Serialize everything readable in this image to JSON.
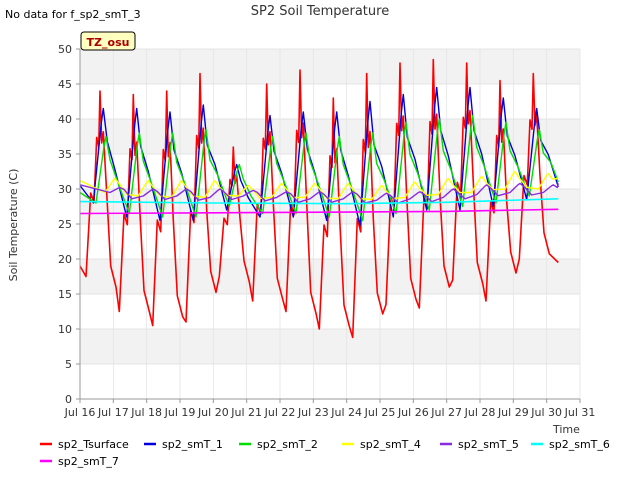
{
  "chart_data": {
    "type": "line",
    "title": "SP2 Soil Temperature",
    "no_data_note": "No data for f_sp2_smT_3",
    "site_badge": "TZ_osu",
    "xlabel": "Time",
    "ylabel": "Soil Temperature (C)",
    "xlim": [
      16,
      31
    ],
    "ylim": [
      0,
      50
    ],
    "x_ticks": [
      16,
      17,
      18,
      19,
      20,
      21,
      22,
      23,
      24,
      25,
      26,
      27,
      28,
      29,
      30,
      31
    ],
    "x_tick_labels": [
      "Jul 16",
      "Jul 17",
      "Jul 18",
      "Jul 19",
      "Jul 20",
      "Jul 21",
      "Jul 22",
      "Jul 23",
      "Jul 24",
      "Jul 25",
      "Jul 26",
      "Jul 27",
      "Jul 28",
      "Jul 29",
      "Jul 30",
      "Jul 31"
    ],
    "y_ticks": [
      0,
      5,
      10,
      15,
      20,
      25,
      30,
      35,
      40,
      45,
      50
    ],
    "y_tick_labels": [
      "0",
      "5",
      "10",
      "15",
      "20",
      "25",
      "30",
      "35",
      "40",
      "45",
      "50"
    ],
    "daily_x": [
      16.6,
      17.6,
      18.6,
      19.6,
      20.6,
      21.6,
      22.6,
      23.6,
      24.6,
      25.6,
      26.6,
      27.6,
      28.6,
      29.6
    ],
    "x_start": 16.0,
    "x_end": 30.35,
    "series": [
      {
        "name": "sp2_Tsurface",
        "color": "#ff0000",
        "width": 1.6,
        "kind": "surface",
        "start": 19,
        "end": 19.5,
        "peaks": [
          44.0,
          43.5,
          44.0,
          46.5,
          36.0,
          45.0,
          47.0,
          43.0,
          46.5,
          48.0,
          48.5,
          48.0,
          45.5,
          46.5
        ],
        "troughs": [
          17.5,
          12.5,
          10.5,
          11.0,
          17.5,
          14.0,
          12.5,
          10.0,
          8.8,
          13.5,
          13.0,
          17.0,
          14.0,
          20.0
        ]
      },
      {
        "name": "sp2_smT_1",
        "color": "#0000dd",
        "width": 1.4,
        "kind": "damped",
        "lag": 0.1,
        "start": 30.5,
        "end": 30.3,
        "peaks": [
          41.5,
          41.5,
          41.0,
          42.0,
          33.5,
          40.5,
          41.0,
          41.0,
          42.5,
          43.5,
          44.5,
          44.5,
          43.0,
          41.5
        ],
        "troughs": [
          28.0,
          26.0,
          25.5,
          25.5,
          27.0,
          26.0,
          26.0,
          25.5,
          24.8,
          26.0,
          27.0,
          27.0,
          27.5,
          28.5
        ]
      },
      {
        "name": "sp2_smT_2",
        "color": "#00dd00",
        "width": 1.4,
        "kind": "damped",
        "lag": 0.18,
        "start": 29.5,
        "end": 31.0,
        "peaks": [
          37.5,
          38.0,
          38.0,
          38.5,
          33.5,
          37.5,
          38.0,
          37.5,
          38.0,
          39.5,
          40.0,
          40.5,
          39.5,
          38.5
        ],
        "troughs": [
          28.0,
          26.5,
          26.0,
          26.0,
          27.5,
          26.5,
          26.5,
          26.0,
          25.5,
          26.5,
          27.0,
          27.5,
          28.0,
          29.0
        ]
      },
      {
        "name": "sp2_smT_4",
        "color": "#ffff00",
        "width": 1.4,
        "kind": "damped",
        "lag": 0.45,
        "start": 31.2,
        "end": 31.5,
        "peaks": [
          31.5,
          31.2,
          31.2,
          31.2,
          30.5,
          30.8,
          30.8,
          30.8,
          30.5,
          31.0,
          31.5,
          31.8,
          32.5,
          32.2
        ],
        "troughs": [
          29.5,
          29.0,
          28.8,
          28.8,
          29.0,
          28.8,
          28.8,
          28.6,
          28.5,
          28.8,
          29.2,
          29.5,
          30.0,
          30.0
        ]
      },
      {
        "name": "sp2_smT_5",
        "color": "#8a2be2",
        "width": 1.4,
        "kind": "damped",
        "lag": 0.6,
        "start": 30.6,
        "end": 30.8,
        "peaks": [
          30.2,
          30.0,
          30.0,
          30.0,
          29.8,
          29.6,
          29.6,
          29.6,
          29.4,
          29.6,
          30.0,
          30.6,
          30.8,
          30.6
        ],
        "troughs": [
          29.5,
          29.0,
          29.0,
          28.8,
          29.0,
          28.8,
          28.6,
          28.6,
          28.4,
          28.6,
          28.8,
          29.2,
          29.5,
          29.5
        ]
      },
      {
        "name": "sp2_smT_6",
        "color": "#00ffff",
        "width": 1.6,
        "kind": "trend",
        "points": [
          [
            16.0,
            28.2
          ],
          [
            20.0,
            28.0
          ],
          [
            24.0,
            27.9
          ],
          [
            27.0,
            28.1
          ],
          [
            30.35,
            28.6
          ]
        ]
      },
      {
        "name": "sp2_smT_7",
        "color": "#ff00ff",
        "width": 1.6,
        "kind": "trend",
        "points": [
          [
            16.0,
            26.5
          ],
          [
            20.0,
            26.6
          ],
          [
            24.0,
            26.7
          ],
          [
            27.0,
            26.8
          ],
          [
            30.35,
            27.1
          ]
        ]
      }
    ]
  }
}
